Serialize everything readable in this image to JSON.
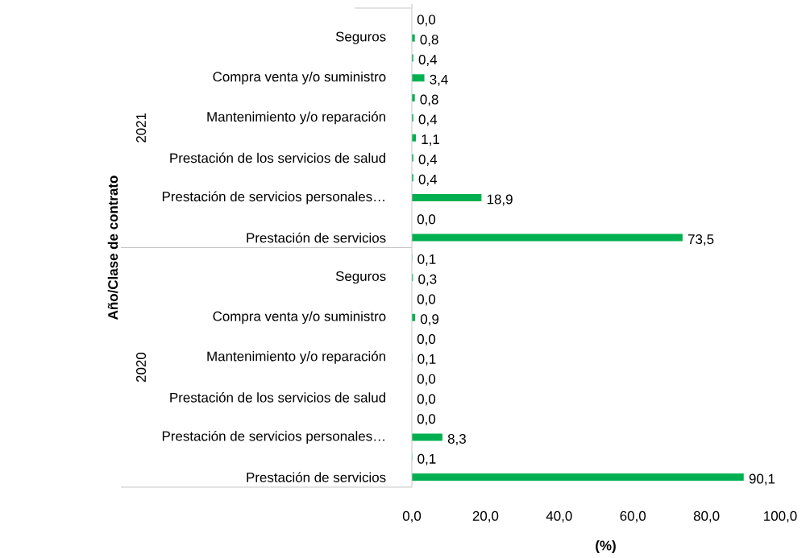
{
  "chart_data": {
    "type": "bar",
    "orientation": "horizontal",
    "color": "#00b050",
    "xlabel": "(%)",
    "ylabel": "Año/Clase de contrato",
    "annotations": [
      "2021",
      "2020"
    ],
    "categories": [
      null,
      "Seguros",
      null,
      "Compra venta y/o suministro",
      null,
      "Mantenimiento y/o reparación",
      null,
      "Prestación de los servicios de salud",
      null,
      "Prestación de servicios personales…",
      null,
      "Prestación de servicios",
      null,
      "Seguros",
      null,
      "Compra venta y/o suministro",
      null,
      "Mantenimiento y/o reparación",
      null,
      "Prestación de los servicios de salud",
      null,
      "Prestación de servicios personales…",
      null,
      "Prestación de servicios"
    ],
    "values": [
      0.0,
      0.8,
      0.4,
      3.4,
      0.8,
      0.4,
      1.1,
      0.4,
      0.4,
      18.9,
      0.0,
      73.5,
      0.1,
      0.3,
      0.0,
      0.9,
      0.0,
      0.1,
      0.0,
      0.0,
      0.0,
      8.3,
      0.1,
      90.1
    ],
    "value_labels": [
      "0,0",
      "0,8",
      "0,4",
      "3,4",
      "0,8",
      "0,4",
      "1,1",
      "0,4",
      "0,4",
      "18,9",
      "0,0",
      "73,5",
      "0,1",
      "0,3",
      "0,0",
      "0,9",
      "0,0",
      "0,1",
      "0,0",
      "0,0",
      "0,0",
      "8,3",
      "0,1",
      "90,1"
    ],
    "xlim": [
      0,
      100
    ],
    "xticks": [
      {
        "value": 0,
        "label": "0,0"
      },
      {
        "value": 20,
        "label": "20,0"
      },
      {
        "value": 40,
        "label": "40,0"
      },
      {
        "value": 60,
        "label": "60,0"
      },
      {
        "value": 80,
        "label": "80,0"
      },
      {
        "value": 100,
        "label": "100,0"
      }
    ]
  }
}
